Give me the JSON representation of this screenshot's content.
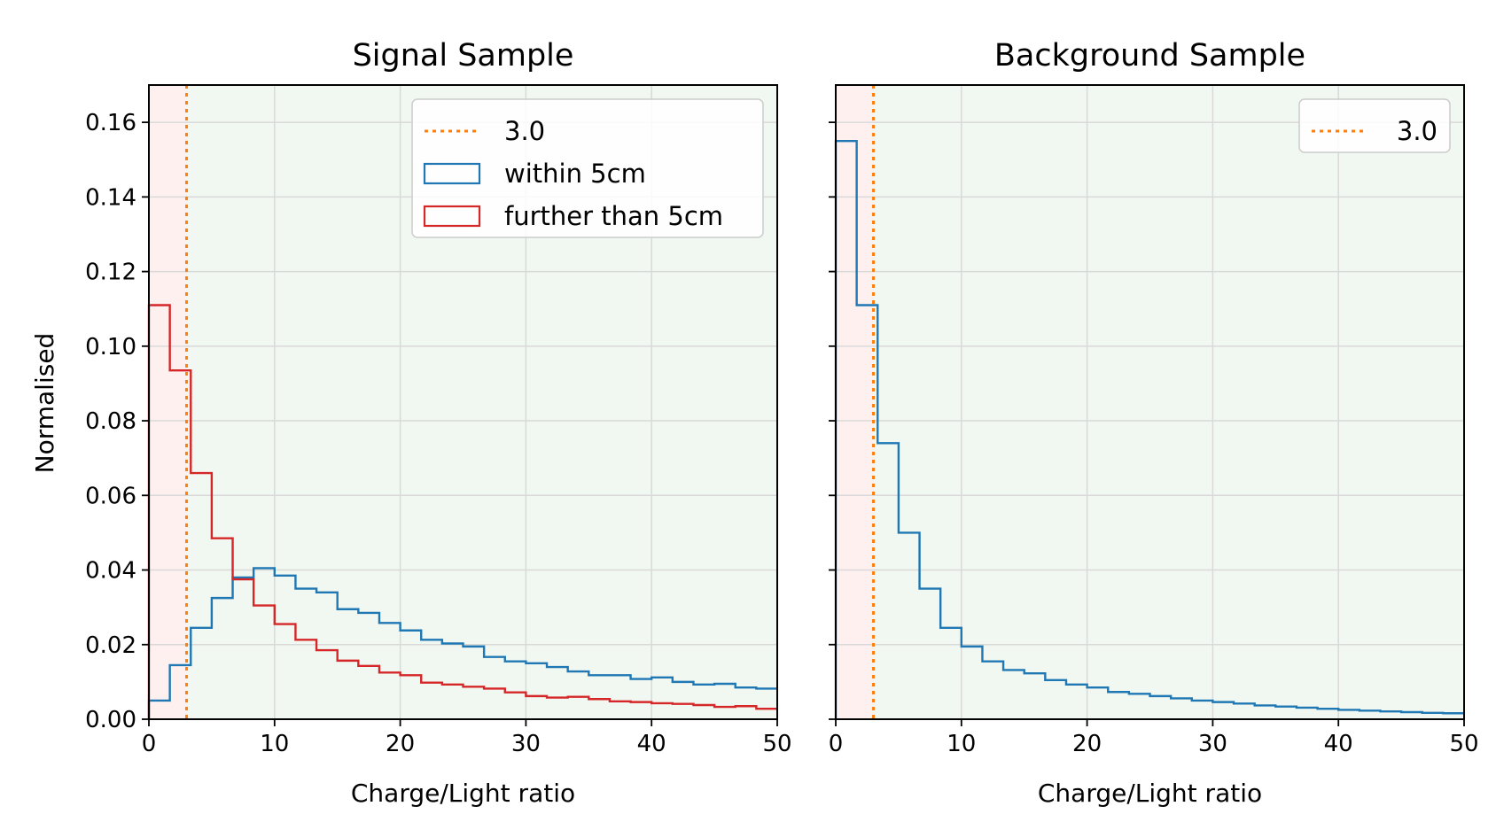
{
  "figure": {
    "ylabel": "Normalised",
    "colors": {
      "within": "#1f77b4",
      "further": "#d62728",
      "threshold": "#ff7f0e",
      "reject_shade": "#fff0f0",
      "accept_shade": "#f1f8f1",
      "grid": "#d9d9d9"
    }
  },
  "chart_data": [
    {
      "type": "histogram",
      "title": "Signal Sample",
      "xlabel": "Charge/Light ratio",
      "ylabel": "Normalised",
      "xlim": [
        0,
        50
      ],
      "ylim": [
        0,
        0.17
      ],
      "xticks": [
        0,
        10,
        20,
        30,
        40,
        50
      ],
      "yticks": [
        "0.00",
        "0.02",
        "0.04",
        "0.06",
        "0.08",
        "0.10",
        "0.12",
        "0.14",
        "0.16"
      ],
      "grid": true,
      "legend_position": "upper right",
      "threshold": 3.0,
      "threshold_label": "3.0",
      "bin_edges": [
        0,
        1.667,
        3.333,
        5.0,
        6.667,
        8.333,
        10.0,
        11.667,
        13.333,
        15.0,
        16.667,
        18.333,
        20.0,
        21.667,
        23.333,
        25.0,
        26.667,
        28.333,
        30.0,
        31.667,
        33.333,
        35.0,
        36.667,
        38.333,
        40.0,
        41.667,
        43.333,
        45.0,
        46.667,
        48.333,
        50.0
      ],
      "series": [
        {
          "name": "within 5cm",
          "color": "#1f77b4",
          "values": [
            0.005,
            0.0145,
            0.0245,
            0.0325,
            0.038,
            0.0405,
            0.0385,
            0.035,
            0.034,
            0.0295,
            0.0285,
            0.0258,
            0.0238,
            0.0213,
            0.0203,
            0.0195,
            0.0167,
            0.0155,
            0.015,
            0.014,
            0.0128,
            0.0118,
            0.0118,
            0.0108,
            0.0112,
            0.01,
            0.0093,
            0.0095,
            0.0085,
            0.0082
          ]
        },
        {
          "name": "further than 5cm",
          "color": "#d62728",
          "values": [
            0.111,
            0.0935,
            0.066,
            0.0485,
            0.0375,
            0.0305,
            0.0255,
            0.0213,
            0.0185,
            0.0157,
            0.0143,
            0.0125,
            0.0118,
            0.0098,
            0.0093,
            0.0087,
            0.0082,
            0.0072,
            0.0062,
            0.0058,
            0.006,
            0.0054,
            0.0048,
            0.0046,
            0.0043,
            0.0041,
            0.0038,
            0.0033,
            0.0035,
            0.0028
          ]
        }
      ]
    },
    {
      "type": "histogram",
      "title": "Background Sample",
      "xlabel": "Charge/Light ratio",
      "xlim": [
        0,
        50
      ],
      "ylim": [
        0,
        0.17
      ],
      "xticks": [
        0,
        10,
        20,
        30,
        40,
        50
      ],
      "grid": true,
      "legend_position": "upper right",
      "threshold": 3.0,
      "threshold_label": "3.0",
      "bin_edges": [
        0,
        1.667,
        3.333,
        5.0,
        6.667,
        8.333,
        10.0,
        11.667,
        13.333,
        15.0,
        16.667,
        18.333,
        20.0,
        21.667,
        23.333,
        25.0,
        26.667,
        28.333,
        30.0,
        31.667,
        33.333,
        35.0,
        36.667,
        38.333,
        40.0,
        41.667,
        43.333,
        45.0,
        46.667,
        48.333,
        50.0
      ],
      "series": [
        {
          "name": "",
          "color": "#1f77b4",
          "values": [
            0.155,
            0.111,
            0.074,
            0.05,
            0.035,
            0.0245,
            0.0195,
            0.0155,
            0.0132,
            0.0123,
            0.0105,
            0.0093,
            0.0085,
            0.0073,
            0.0068,
            0.0062,
            0.0056,
            0.005,
            0.0046,
            0.0042,
            0.0037,
            0.0034,
            0.0031,
            0.0028,
            0.0025,
            0.0023,
            0.0021,
            0.0019,
            0.0017,
            0.0016
          ]
        }
      ]
    }
  ]
}
